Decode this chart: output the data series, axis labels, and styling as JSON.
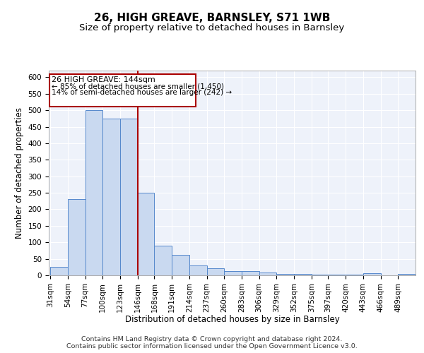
{
  "title": "26, HIGH GREAVE, BARNSLEY, S71 1WB",
  "subtitle": "Size of property relative to detached houses in Barnsley",
  "xlabel": "Distribution of detached houses by size in Barnsley",
  "ylabel": "Number of detached properties",
  "footnote1": "Contains HM Land Registry data © Crown copyright and database right 2024.",
  "footnote2": "Contains public sector information licensed under the Open Government Licence v3.0.",
  "annotation_line1": "26 HIGH GREAVE: 144sqm",
  "annotation_line2": "← 85% of detached houses are smaller (1,450)",
  "annotation_line3": "14% of semi-detached houses are larger (242) →",
  "property_size": 144,
  "bin_edges": [
    31,
    54,
    77,
    100,
    123,
    146,
    168,
    191,
    214,
    237,
    260,
    283,
    306,
    329,
    352,
    375,
    397,
    420,
    443,
    466,
    489
  ],
  "bin_counts": [
    25,
    230,
    500,
    475,
    475,
    250,
    90,
    62,
    30,
    22,
    12,
    12,
    8,
    5,
    5,
    3,
    3,
    2,
    7,
    0,
    5
  ],
  "bar_color": "#c9d9f0",
  "bar_edge_color": "#5588cc",
  "vline_color": "#aa0000",
  "vline_x": 146,
  "annotation_box_color": "#aa0000",
  "ylim": [
    0,
    620
  ],
  "yticks": [
    0,
    50,
    100,
    150,
    200,
    250,
    300,
    350,
    400,
    450,
    500,
    550,
    600
  ],
  "bg_color": "#eef2fa",
  "grid_color": "#ffffff",
  "title_fontsize": 11,
  "subtitle_fontsize": 9.5,
  "axis_label_fontsize": 8.5,
  "tick_fontsize": 7.5,
  "annotation_fontsize": 8,
  "footnote_fontsize": 6.8
}
